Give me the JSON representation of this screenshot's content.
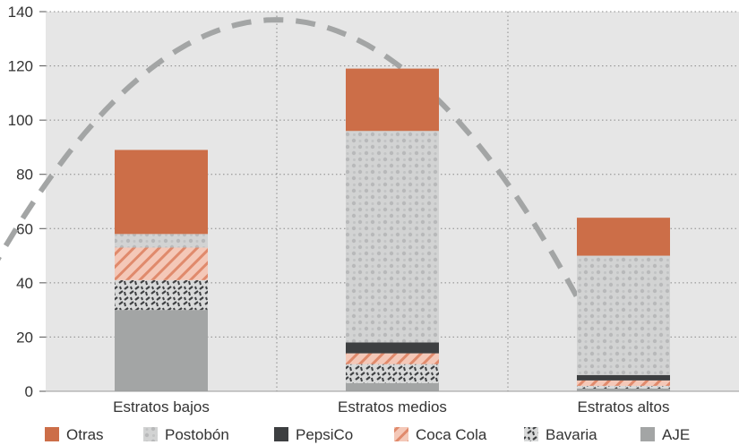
{
  "chart_data": {
    "type": "bar",
    "stacked": true,
    "categories": [
      "Estratos bajos",
      "Estratos medios",
      "Estratos altos"
    ],
    "series": [
      {
        "name": "AJE",
        "values": [
          30,
          3,
          1
        ],
        "color": "#a3a5a5",
        "pattern": "solid"
      },
      {
        "name": "Bavaria",
        "values": [
          11,
          7,
          1
        ],
        "color": "#5a5d5f",
        "pattern": "dashes"
      },
      {
        "name": "Coca Cola",
        "values": [
          12,
          4,
          2
        ],
        "color": "#e8a08a",
        "pattern": "hatch"
      },
      {
        "name": "PepsiCo",
        "values": [
          0,
          4,
          2
        ],
        "color": "#3d3f41",
        "pattern": "solid"
      },
      {
        "name": "Postobón",
        "values": [
          5,
          78,
          44
        ],
        "color": "#d2d3d3",
        "pattern": "dots"
      },
      {
        "name": "Otras",
        "values": [
          31,
          23,
          14
        ],
        "color": "#cc6e48",
        "pattern": "solid"
      }
    ],
    "legend_order": [
      "Otras",
      "Postobón",
      "PepsiCo",
      "Coca Cola",
      "Bavaria",
      "AJE"
    ],
    "y_ticks": [
      0,
      20,
      40,
      60,
      80,
      100,
      120,
      140
    ],
    "ylim": [
      0,
      140
    ],
    "grid": "dotted",
    "legend_position": "bottom",
    "arc": {
      "style": "dashed",
      "color": "#a3a5a5",
      "center_x": 1.0,
      "peak_y": 137,
      "end_y": 33
    },
    "background": "#e6e6e6"
  }
}
